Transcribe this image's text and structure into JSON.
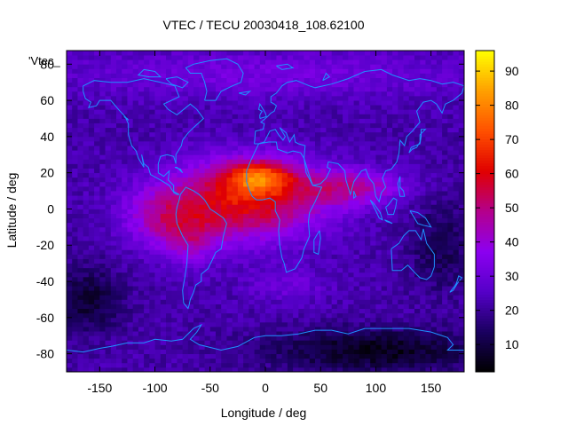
{
  "chart_data": {
    "type": "heatmap",
    "title": "VTEC / TECU 20030418_108.62100",
    "xlabel": "Longitude / deg",
    "ylabel": "Latitude / deg",
    "series_label": "'Vtec_",
    "xlim": [
      -180,
      180
    ],
    "ylim": [
      -90,
      87.5
    ],
    "xticks": [
      -150,
      -100,
      -50,
      0,
      50,
      100,
      150
    ],
    "yticks": [
      -80,
      -60,
      -40,
      -20,
      0,
      20,
      40,
      60,
      80
    ],
    "colorbar": {
      "range": [
        2,
        96
      ],
      "ticks": [
        10,
        20,
        30,
        40,
        50,
        60,
        70,
        80,
        90
      ],
      "palette": [
        "#000000",
        "#1a0060",
        "#5500c8",
        "#8c00f0",
        "#b4008c",
        "#e00000",
        "#ff5000",
        "#ffa000",
        "#ffff00"
      ]
    },
    "grid": {
      "lon_step": 5,
      "lat_step": 2.5
    },
    "field_features": [
      {
        "name": "background",
        "value": 22
      },
      {
        "name": "main equatorial anomaly",
        "lon": -20,
        "lat": 5,
        "value": 62
      },
      {
        "name": "northern crest",
        "lon": -5,
        "lat": 18,
        "value": 94
      },
      {
        "name": "southern crest",
        "lon": -70,
        "lat": -18,
        "value": 72
      },
      {
        "name": "eastern tongue",
        "lon": 80,
        "lat": 12,
        "value": 44
      },
      {
        "name": "southern polar low",
        "lon": 100,
        "lat": -78,
        "value": 5
      },
      {
        "name": "south pacific low",
        "lon": -160,
        "lat": -50,
        "value": 8
      }
    ],
    "coastline_color": "#1e90ff"
  }
}
